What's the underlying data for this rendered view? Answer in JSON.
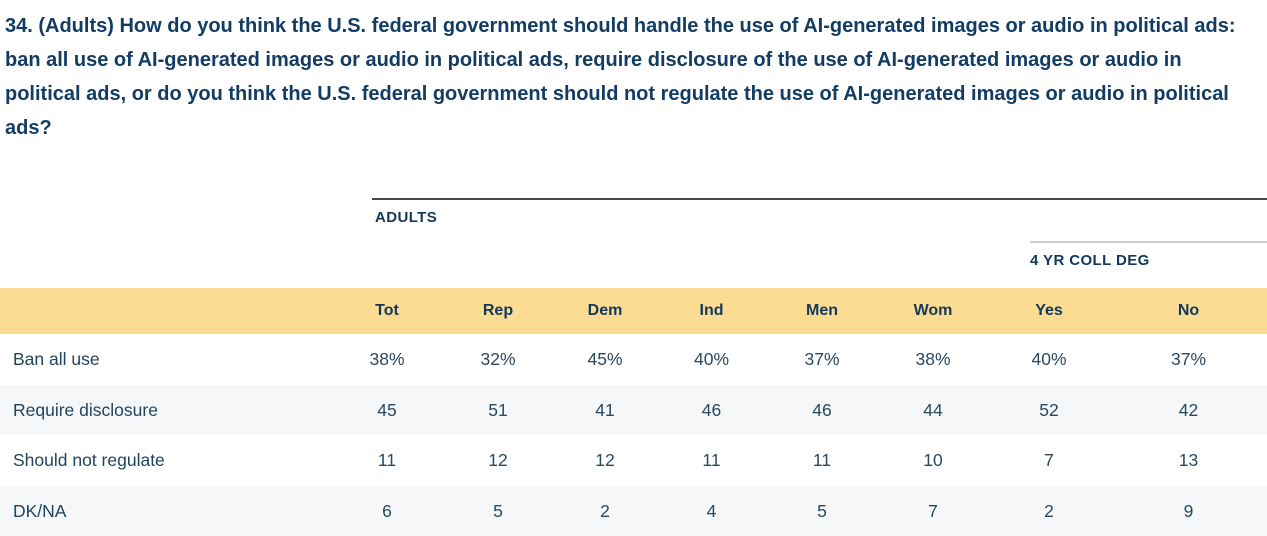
{
  "question": {
    "text": "34. (Adults) How do you think the U.S. federal government should handle the use of AI-generated images or audio in political ads: ban all use of AI-generated images or audio in political ads, require disclosure of the use of AI-generated images or audio in political ads, or do you think the U.S. federal government should not regulate the use of AI-generated images or audio in political ads?"
  },
  "table": {
    "group_headers": {
      "adults": "ADULTS",
      "coll_deg": "4 YR COLL DEG"
    },
    "columns": [
      "Tot",
      "Rep",
      "Dem",
      "Ind",
      "Men",
      "Wom",
      "Yes",
      "No"
    ],
    "rows": [
      {
        "label": "Ban all use",
        "values": [
          "38%",
          "32%",
          "45%",
          "40%",
          "37%",
          "38%",
          "40%",
          "37%"
        ]
      },
      {
        "label": "Require disclosure",
        "values": [
          "45",
          "51",
          "41",
          "46",
          "46",
          "44",
          "52",
          "42"
        ]
      },
      {
        "label": "Should not regulate",
        "values": [
          "11",
          "12",
          "12",
          "11",
          "11",
          "10",
          "7",
          "13"
        ]
      },
      {
        "label": "DK/NA",
        "values": [
          "6",
          "5",
          "2",
          "4",
          "5",
          "7",
          "2",
          "9"
        ]
      }
    ]
  },
  "colors": {
    "question_text": "#123C63",
    "header_text": "#12395B",
    "body_text": "#284961",
    "header_band": "#FCDC92",
    "alt_row_bg": "#F5F7F8",
    "adults_rule": "#3E4A54",
    "coll_deg_rule": "#C9CDD1"
  },
  "chart_data": {
    "type": "table",
    "title": "34. (Adults) How do you think the U.S. federal government should handle the use of AI-generated images or audio in political ads",
    "group_headers": [
      {
        "label": "ADULTS",
        "spans_columns": [
          "Tot",
          "Rep",
          "Dem",
          "Ind",
          "Men",
          "Wom",
          "Yes",
          "No"
        ]
      },
      {
        "label": "4 YR COLL DEG",
        "spans_columns": [
          "Yes",
          "No"
        ]
      }
    ],
    "categories": [
      "Tot",
      "Rep",
      "Dem",
      "Ind",
      "Men",
      "Wom",
      "Yes",
      "No"
    ],
    "series": [
      {
        "name": "Ban all use",
        "values": [
          38,
          32,
          45,
          40,
          37,
          38,
          40,
          37
        ]
      },
      {
        "name": "Require disclosure",
        "values": [
          45,
          51,
          41,
          46,
          46,
          44,
          52,
          42
        ]
      },
      {
        "name": "Should not regulate",
        "values": [
          11,
          12,
          12,
          11,
          11,
          10,
          7,
          13
        ]
      },
      {
        "name": "DK/NA",
        "values": [
          6,
          5,
          2,
          4,
          5,
          7,
          2,
          9
        ]
      }
    ],
    "value_unit": "percent"
  }
}
